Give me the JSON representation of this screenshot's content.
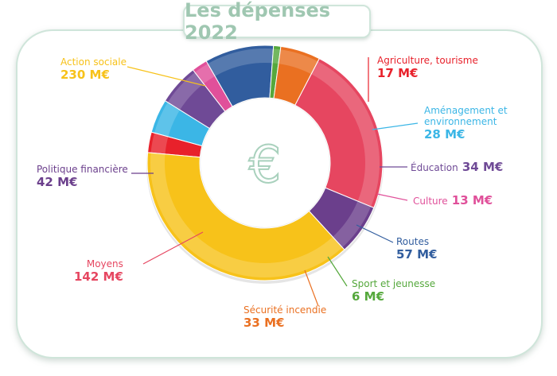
{
  "title": "Les dépenses 2022",
  "center_icon": "euro-icon",
  "chart_data": {
    "type": "pie",
    "variant": "donut",
    "title": "Les dépenses 2022",
    "unit": "M€",
    "slices": [
      {
        "name": "Agriculture, tourisme",
        "value": 17,
        "label": "17 M€",
        "color": "#e8212b"
      },
      {
        "name": "Aménagement et environnement",
        "value": 28,
        "label": "28 M€",
        "color": "#3bb6e6"
      },
      {
        "name": "Éducation",
        "value": 34,
        "label": "34 M€",
        "color": "#6f4a96"
      },
      {
        "name": "Culture",
        "value": 13,
        "label": "13 M€",
        "color": "#e0509a"
      },
      {
        "name": "Routes",
        "value": 57,
        "label": "57 M€",
        "color": "#315d9e"
      },
      {
        "name": "Sport et jeunesse",
        "value": 6,
        "label": "6 M€",
        "color": "#55a83c"
      },
      {
        "name": "Sécurité incendie",
        "value": 33,
        "label": "33 M€",
        "color": "#ea7021"
      },
      {
        "name": "Moyens",
        "value": 142,
        "label": "142 M€",
        "color": "#e64660"
      },
      {
        "name": "Politique financière",
        "value": 42,
        "label": "42 M€",
        "color": "#6b3f8c"
      },
      {
        "name": "Action sociale",
        "value": 230,
        "label": "230 M€",
        "color": "#f7c21a"
      }
    ]
  }
}
